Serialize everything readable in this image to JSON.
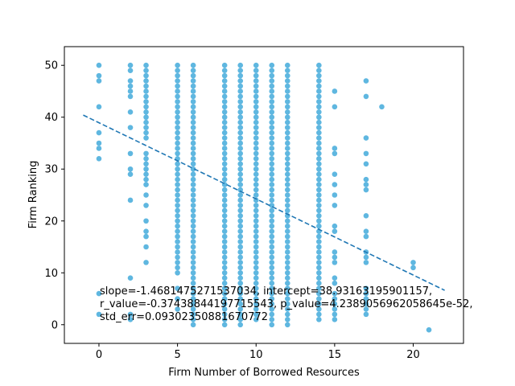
{
  "chart_data": {
    "type": "scatter",
    "title": "",
    "xlabel": "Firm Number of Borrowed Resources",
    "ylabel": "Firm Ranking",
    "xlim": [
      -2.2,
      23.2
    ],
    "ylim": [
      -3.6,
      53.6
    ],
    "xticks": [
      0,
      5,
      10,
      15,
      20
    ],
    "yticks": [
      0,
      10,
      20,
      30,
      40,
      50
    ],
    "grid": false,
    "colors": {
      "points": "#5fb7e0",
      "fit_line": "#1f77b4"
    },
    "point_columns": [
      {
        "x": 0,
        "y": [
          50,
          48,
          47,
          42,
          37,
          35,
          34,
          32,
          6,
          2
        ]
      },
      {
        "x": 2,
        "y": [
          50,
          49,
          47,
          46,
          45,
          44,
          41,
          38,
          33,
          30,
          29,
          24,
          9,
          2,
          1
        ]
      },
      {
        "x": 3,
        "y_min": 12,
        "y_max": 50,
        "missing": [
          13,
          14,
          16,
          19,
          21,
          22,
          24,
          26,
          34,
          35
        ]
      },
      {
        "x": 5,
        "y_min": 3,
        "y_max": 50,
        "missing": [
          4,
          6,
          8,
          9
        ]
      },
      {
        "x": 6,
        "y_min": 0,
        "y_max": 50,
        "missing": []
      },
      {
        "x": 8,
        "y_min": 0,
        "y_max": 50,
        "missing": []
      },
      {
        "x": 9,
        "y_min": 0,
        "y_max": 50,
        "missing": []
      },
      {
        "x": 10,
        "y_min": 1,
        "y_max": 50,
        "missing": []
      },
      {
        "x": 11,
        "y_min": 0,
        "y_max": 50,
        "missing": []
      },
      {
        "x": 12,
        "y_min": 0,
        "y_max": 50,
        "missing": []
      },
      {
        "x": 14,
        "y_min": 1,
        "y_max": 50,
        "missing": []
      },
      {
        "x": 15,
        "y": [
          45,
          42,
          34,
          33,
          29,
          27,
          25,
          23,
          19,
          18,
          14,
          13,
          12,
          9,
          8,
          6,
          5,
          4,
          3,
          2,
          1
        ]
      },
      {
        "x": 17,
        "y": [
          47,
          44,
          36,
          33,
          31,
          28,
          27,
          26,
          21,
          18,
          17,
          14,
          13,
          12,
          7,
          6,
          5,
          4,
          3,
          2
        ]
      },
      {
        "x": 18,
        "y": [
          42
        ]
      },
      {
        "x": 20,
        "y": [
          12,
          11
        ]
      },
      {
        "x": 21,
        "y": [
          -1
        ]
      }
    ],
    "fit_line": {
      "slope": -1.4681475271537034,
      "intercept": 38.93163195901157,
      "x_range": [
        -1,
        22
      ]
    },
    "annotation_lines": [
      "slope=-1.4681475271537034, intercept=38.93163195901157,",
      "r_value=-0.37438844197715543, p_value=4.2389056962058645e-52,",
      "std_err=0.09302350881670772"
    ]
  }
}
